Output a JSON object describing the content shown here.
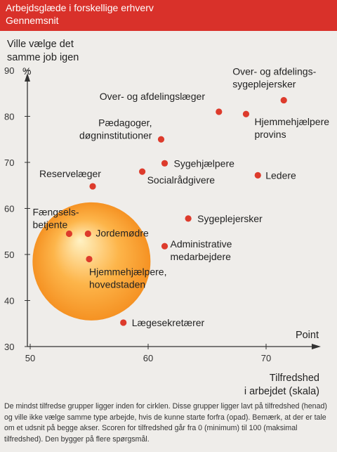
{
  "header": {
    "title": "Arbejdsglæde i forskellige erhverv",
    "subtitle": "Gennemsnit"
  },
  "colors": {
    "header_bg": "#d9312a",
    "dot": "#dd3b2c",
    "circle_gradient": [
      "#fff2c4",
      "#fdb54a",
      "#f59223"
    ],
    "axis": "#333333"
  },
  "caption": "De mindst tilfredse grupper ligger inden for cirklen. Disse grupper ligger lavt på tilfredshed (henad) og ville ikke vælge samme type arbejde, hvis de kunne starte forfra (opad). Bemærk, at der er tale om et udsnit på begge akser. Scoren for tilfredshed går fra 0 (minimum) til 100 (maksimal tilfredshed). Den bygger på flere spørgsmål.",
  "chart_data": {
    "type": "scatter",
    "ylabel_lines": [
      "Ville vælge det",
      "samme job igen"
    ],
    "yunit": "%",
    "xunit": "Point",
    "xlabel_lines": [
      "Tilfredshed",
      "i arbejdet (skala)"
    ],
    "xlim": [
      48.5,
      75
    ],
    "ylim": [
      30,
      97
    ],
    "xticks": [
      50,
      60,
      70
    ],
    "yticks": [
      30,
      40,
      50,
      60,
      70,
      80,
      90
    ],
    "grid": false,
    "points": [
      {
        "label": "Over- og afdelingslæger",
        "x": 66,
        "y": 81
      },
      {
        "label": "Over- og afdelingssygeplejersker",
        "x": 71.5,
        "y": 83.5
      },
      {
        "label": "Hjemmehjælpere provins",
        "x": 68.3,
        "y": 80.5
      },
      {
        "label": "Pædagoger, døgninstitutioner",
        "x": 61.1,
        "y": 75
      },
      {
        "label": "Sygehjælpere",
        "x": 61.4,
        "y": 69.8
      },
      {
        "label": "Socialrådgivere",
        "x": 59.5,
        "y": 68
      },
      {
        "label": "Ledere",
        "x": 69.3,
        "y": 67.2
      },
      {
        "label": "Reservelæger",
        "x": 55.3,
        "y": 64.8
      },
      {
        "label": "Sygeplejersker",
        "x": 63.4,
        "y": 57.8
      },
      {
        "label": "Fængselsbetjente",
        "x": 53.3,
        "y": 54.5
      },
      {
        "label": "Jordemødre",
        "x": 54.9,
        "y": 54.5
      },
      {
        "label": "Administrative medarbejdere",
        "x": 61.4,
        "y": 51.8
      },
      {
        "label": "Hjemmehjælpere, hovedstaden",
        "x": 55,
        "y": 49
      },
      {
        "label": "Lægesekretærer",
        "x": 57.9,
        "y": 35.2
      }
    ],
    "highlight_circle": {
      "cx": 55.2,
      "cy": 48.5,
      "r_x_units": 5
    }
  }
}
